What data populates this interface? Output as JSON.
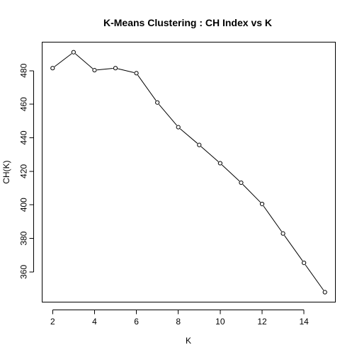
{
  "chart_data": {
    "type": "line",
    "title": "K-Means Clustering : CH Index vs K",
    "xlabel": "K",
    "ylabel": "CH(K)",
    "x": [
      2,
      3,
      4,
      5,
      6,
      7,
      8,
      9,
      10,
      11,
      12,
      13,
      14,
      15
    ],
    "series": [
      {
        "values": [
          481.5,
          491.0,
          480.3,
          481.5,
          478.5,
          461.0,
          446.3,
          435.7,
          424.8,
          413.2,
          400.5,
          382.9,
          365.4,
          347.9
        ]
      }
    ],
    "xlim": [
      1.5,
      15.5
    ],
    "ylim": [
      342.0,
      497.0
    ],
    "xticks": [
      2,
      4,
      6,
      8,
      10,
      12,
      14
    ],
    "yticks": [
      360,
      380,
      400,
      420,
      440,
      460,
      480
    ],
    "marker": "open-circle",
    "grid": false,
    "legend": false
  }
}
